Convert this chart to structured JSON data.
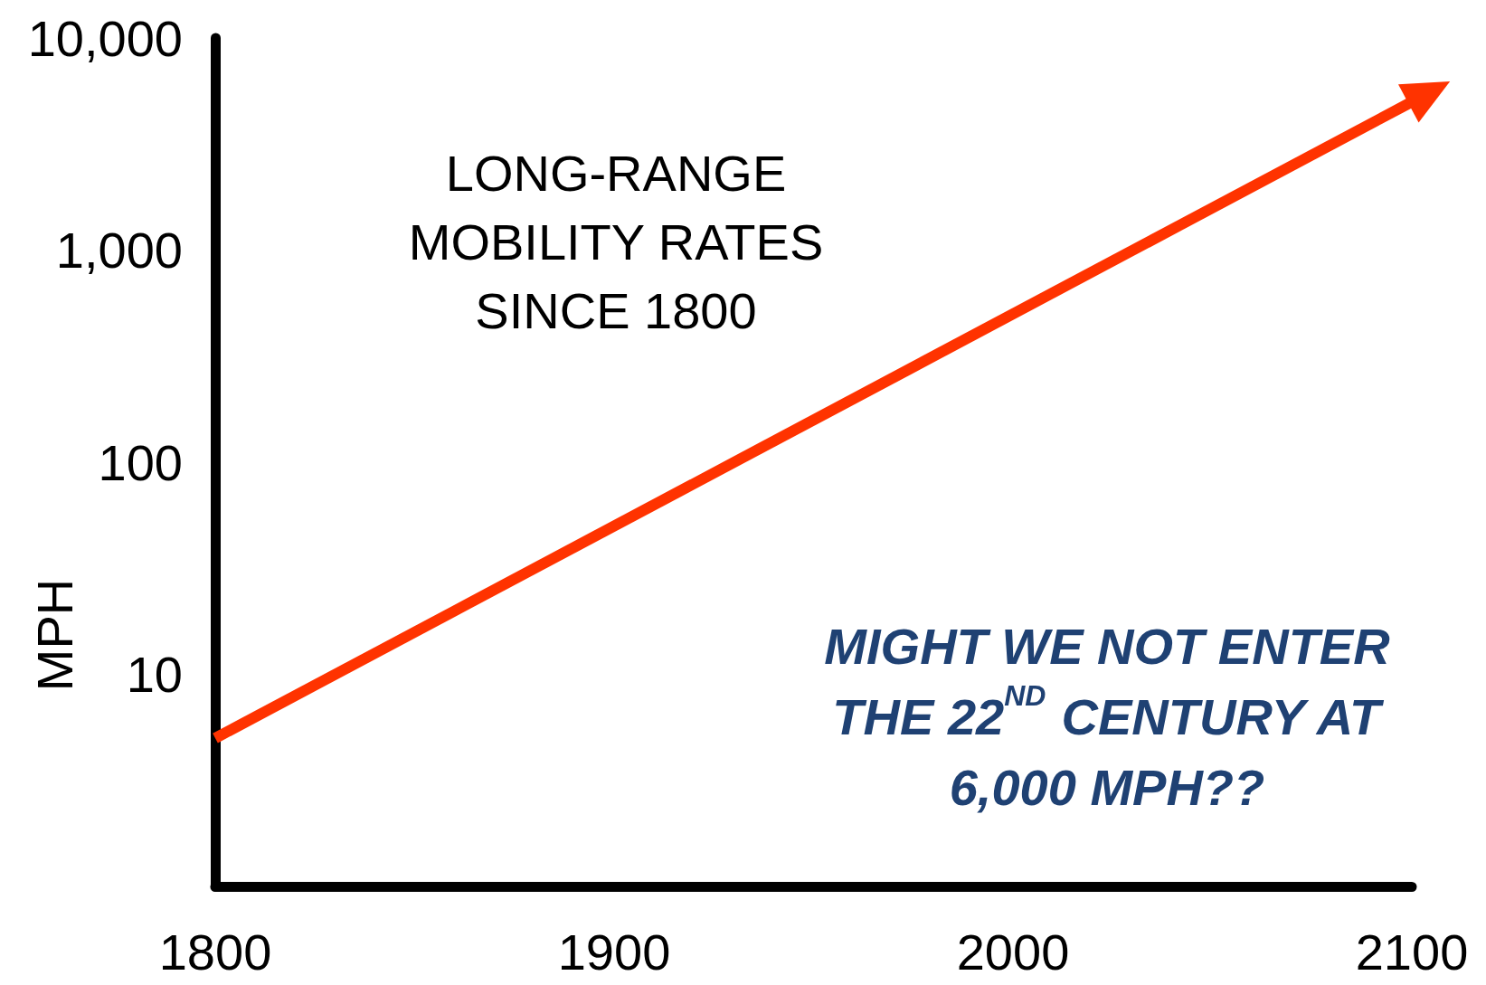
{
  "chart_data": {
    "type": "line",
    "title": "LONG-RANGE\nMOBILITY RATES\nSINCE 1800",
    "ylabel": "MPH",
    "x": [
      1800,
      2100
    ],
    "series": [
      {
        "color": "#ff3300",
        "values": [
          5,
          5000
        ]
      }
    ],
    "xlim": [
      1800,
      2100
    ],
    "xticks": [
      1800,
      1900,
      2000,
      2100
    ],
    "ylim": [
      1,
      10000
    ],
    "log": true,
    "yticks": [
      10,
      100,
      {
        "value": 1000,
        "label": "1,000"
      },
      {
        "value": 10000,
        "label": "10,000"
      }
    ],
    "annotations": [
      "MIGHT WE NOT ENTER\nTHE 22$^{ND}$ CENTURY AT\n6,000 MPH??"
    ],
    "grid": false,
    "marker": "none",
    "line_style": "solid"
  }
}
